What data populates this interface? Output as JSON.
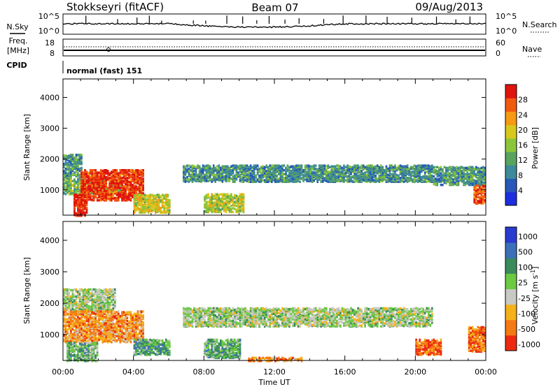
{
  "header": {
    "station": "Stokkseyri (fitACF)",
    "beam": "Beam 07",
    "date": "09/Aug/2013"
  },
  "noise_panel": {
    "left_label": "N.Sky",
    "right_label": "N.Search",
    "left_ticks": [
      "10^5",
      "10^0"
    ],
    "right_ticks": [
      "10^5",
      "10^0"
    ]
  },
  "freq_panel": {
    "left_label": "Freq.",
    "left_unit": "[MHz]",
    "left_ticks": [
      "18",
      "8"
    ],
    "right_label": "Nave",
    "right_ticks": [
      "60",
      "0"
    ],
    "cpid_label": "CPID",
    "cpid_value": "normal (fast) 151"
  },
  "colors": {
    "power_scale": [
      "#1c2ee0",
      "#2757b8",
      "#3c8a9a",
      "#58a35e",
      "#8ac53a",
      "#d8c81e",
      "#f59a12",
      "#f15a0e",
      "#e0140e"
    ],
    "velocity_scale": [
      "#2a3bd0",
      "#3b6fb8",
      "#3a8a5c",
      "#6bc942",
      "#c8c8c4",
      "#f5b11a",
      "#f47a14",
      "#ec2a10"
    ]
  },
  "chart_data": [
    {
      "type": "heatmap",
      "name": "power",
      "ylabel": "Slant Range [km]",
      "ylim": [
        180,
        4600
      ],
      "yticks": [
        "1000",
        "2000",
        "3000",
        "4000"
      ],
      "ytick_values": [
        1000,
        2000,
        3000,
        4000
      ],
      "colorbar_label": "Power [dB]",
      "colorbar_ticks": [
        "4",
        "8",
        "12",
        "16",
        "20",
        "24",
        "28"
      ],
      "colorbar_range": [
        0,
        32
      ],
      "regions": [
        {
          "t0": 0.0,
          "t1": 1.0,
          "r0": 1400,
          "r1": 2200,
          "level": 0.35
        },
        {
          "t0": 0.0,
          "t1": 3.4,
          "r0": 900,
          "r1": 1400,
          "level": 0.45
        },
        {
          "t0": 1.0,
          "t1": 4.6,
          "r0": 700,
          "r1": 1700,
          "level": 0.92
        },
        {
          "t0": 0.6,
          "t1": 1.4,
          "r0": 200,
          "r1": 900,
          "level": 0.95
        },
        {
          "t0": 4.0,
          "t1": 6.0,
          "r0": 300,
          "r1": 900,
          "level": 0.6
        },
        {
          "t0": 6.8,
          "t1": 21.0,
          "r0": 1300,
          "r1": 1850,
          "level": 0.32
        },
        {
          "t0": 8.0,
          "t1": 10.2,
          "r0": 320,
          "r1": 900,
          "level": 0.55
        },
        {
          "t0": 21.0,
          "t1": 24.0,
          "r0": 1200,
          "r1": 1800,
          "level": 0.35
        },
        {
          "t0": 23.3,
          "t1": 24.0,
          "r0": 600,
          "r1": 1200,
          "level": 0.85
        }
      ]
    },
    {
      "type": "heatmap",
      "name": "velocity",
      "xlabel": "Time UT",
      "xticks": [
        "00:00",
        "04:00",
        "08:00",
        "12:00",
        "16:00",
        "20:00",
        "00:00"
      ],
      "xtick_values": [
        0,
        4,
        8,
        12,
        16,
        20,
        24
      ],
      "xlim": [
        0,
        24
      ],
      "ylabel": "Slant Range [km]",
      "ylim": [
        180,
        4600
      ],
      "yticks": [
        "1000",
        "2000",
        "3000",
        "4000"
      ],
      "ytick_values": [
        1000,
        2000,
        3000,
        4000
      ],
      "colorbar_label": "Velocity [m s^-1]",
      "colorbar_ticks": [
        "1000",
        "500",
        "100",
        "25",
        "-25",
        "-100",
        "-500",
        "-1000"
      ],
      "regions": [
        {
          "t0": 0.0,
          "t1": 3.0,
          "r0": 1800,
          "r1": 2500,
          "level": 0.5
        },
        {
          "t0": 0.0,
          "t1": 4.6,
          "r0": 800,
          "r1": 1800,
          "level": 0.75
        },
        {
          "t0": 0.2,
          "t1": 2.0,
          "r0": 200,
          "r1": 800,
          "level": 0.4
        },
        {
          "t0": 4.0,
          "t1": 6.0,
          "r0": 400,
          "r1": 900,
          "level": 0.35
        },
        {
          "t0": 6.8,
          "t1": 21.0,
          "r0": 1300,
          "r1": 1900,
          "level": 0.5
        },
        {
          "t0": 8.0,
          "t1": 10.0,
          "r0": 300,
          "r1": 900,
          "level": 0.38
        },
        {
          "t0": 10.5,
          "t1": 13.5,
          "r0": 200,
          "r1": 320,
          "level": 0.78
        },
        {
          "t0": 20.0,
          "t1": 21.5,
          "r0": 400,
          "r1": 900,
          "level": 0.85
        },
        {
          "t0": 23.0,
          "t1": 24.0,
          "r0": 500,
          "r1": 1300,
          "level": 0.82
        }
      ]
    }
  ]
}
